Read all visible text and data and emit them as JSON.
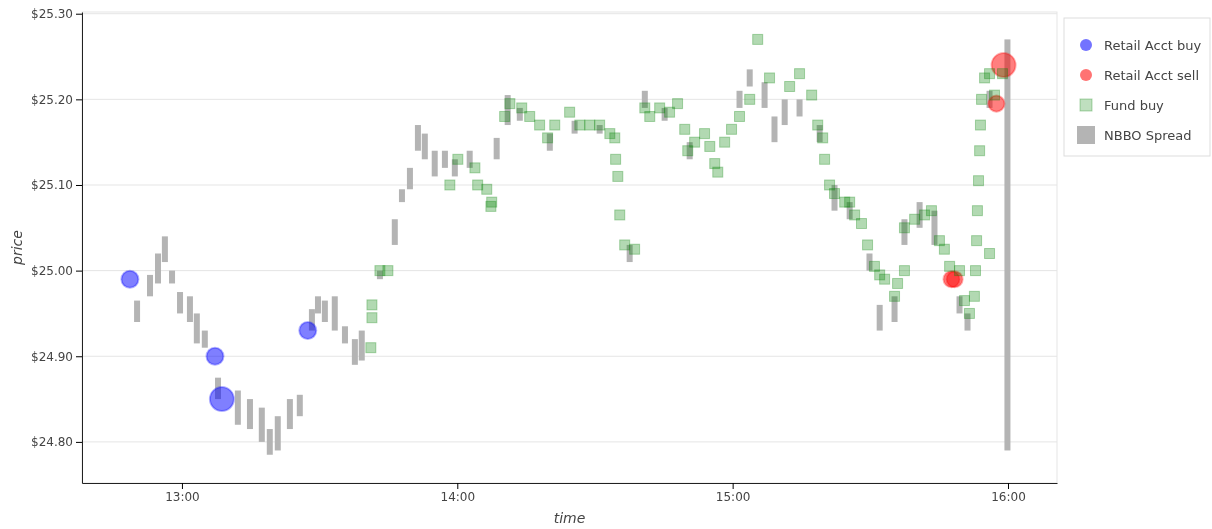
{
  "chart_data": {
    "type": "scatter",
    "xlabel": "time",
    "ylabel": "price",
    "xlim": [
      12.637,
      16.178
    ],
    "ylim": [
      24.752,
      25.302
    ],
    "xticks": [
      {
        "value": 13,
        "label": "13:00"
      },
      {
        "value": 14,
        "label": "14:00"
      },
      {
        "value": 15,
        "label": "15:00"
      },
      {
        "value": 16,
        "label": "16:00"
      }
    ],
    "yticks": [
      {
        "value": 24.8,
        "label": "$24.80"
      },
      {
        "value": 24.9,
        "label": "$24.90"
      },
      {
        "value": 25.0,
        "label": "$25.00"
      },
      {
        "value": 25.1,
        "label": "$25.10"
      },
      {
        "value": 25.2,
        "label": "$25.20"
      },
      {
        "value": 25.3,
        "label": "$25.30"
      }
    ],
    "grid": "y",
    "legend": "top right",
    "series": [
      {
        "name": "Retail Acct buy",
        "type": "bubble",
        "color": "#0000ff",
        "x": [
          12.811,
          13.12,
          13.145,
          13.457
        ],
        "values": [
          24.99,
          24.9,
          24.85,
          24.93
        ],
        "sizes": [
          0.5,
          0.5,
          1,
          0.5
        ]
      },
      {
        "name": "Retail Acct sell",
        "type": "bubble",
        "color": "#ff0000",
        "x": [
          15.795,
          15.806,
          15.958,
          15.984
        ],
        "values": [
          24.99,
          24.99,
          25.195,
          25.24
        ],
        "sizes": [
          0.45,
          0.45,
          0.45,
          1
        ]
      },
      {
        "name": "Fund buy",
        "marker": "square",
        "color": "#008000",
        "x": [
          13.686,
          13.69,
          13.69,
          13.719,
          13.748,
          13.973,
          14.002,
          14.064,
          14.074,
          14.107,
          14.122,
          14.125,
          14.172,
          14.191,
          14.234,
          14.263,
          14.299,
          14.328,
          14.354,
          14.408,
          14.445,
          14.481,
          14.517,
          14.554,
          14.572,
          14.575,
          14.583,
          14.59,
          14.608,
          14.644,
          14.681,
          14.699,
          14.735,
          14.771,
          14.8,
          14.826,
          14.837,
          14.862,
          14.898,
          14.917,
          14.935,
          14.946,
          14.971,
          14.996,
          15.025,
          15.062,
          15.091,
          15.134,
          15.207,
          15.243,
          15.287,
          15.309,
          15.327,
          15.334,
          15.352,
          15.37,
          15.407,
          15.425,
          15.443,
          15.468,
          15.49,
          15.515,
          15.534,
          15.552,
          15.588,
          15.599,
          15.624,
          15.624,
          15.661,
          15.697,
          15.722,
          15.751,
          15.769,
          15.788,
          15.824,
          15.842,
          15.86,
          15.878,
          15.882,
          15.886,
          15.889,
          15.893,
          15.897,
          15.9,
          15.904,
          15.915,
          15.933,
          15.951,
          15.98,
          15.933
        ],
        "values": [
          24.91,
          24.945,
          24.96,
          25.0,
          25.0,
          25.1,
          25.13,
          25.12,
          25.1,
          25.095,
          25.075,
          25.08,
          25.18,
          25.195,
          25.19,
          25.18,
          25.17,
          25.155,
          25.17,
          25.185,
          25.17,
          25.17,
          25.17,
          25.16,
          25.155,
          25.13,
          25.11,
          25.065,
          25.03,
          25.025,
          25.19,
          25.18,
          25.19,
          25.185,
          25.195,
          25.165,
          25.14,
          25.15,
          25.16,
          25.145,
          25.125,
          25.115,
          25.15,
          25.165,
          25.18,
          25.2,
          25.27,
          25.225,
          25.215,
          25.23,
          25.205,
          25.17,
          25.155,
          25.13,
          25.1,
          25.09,
          25.08,
          25.08,
          25.065,
          25.055,
          25.03,
          25.005,
          24.995,
          24.99,
          24.97,
          24.985,
          25.0,
          25.05,
          25.06,
          25.065,
          25.07,
          25.035,
          25.025,
          25.005,
          25.0,
          24.965,
          24.95,
          24.97,
          25.0,
          25.035,
          25.07,
          25.105,
          25.14,
          25.17,
          25.2,
          25.225,
          25.23,
          25.205,
          25.23,
          25.02
        ]
      },
      {
        "name": "NBBO Spread",
        "type": "bar",
        "color": "#b4b4b4",
        "x": [
          12.837,
          12.884,
          12.913,
          12.938,
          12.964,
          12.993,
          13.029,
          13.054,
          13.083,
          13.131,
          13.203,
          13.247,
          13.29,
          13.319,
          13.348,
          13.392,
          13.428,
          13.472,
          13.494,
          13.519,
          13.555,
          13.592,
          13.628,
          13.653,
          13.719,
          13.773,
          13.799,
          13.828,
          13.857,
          13.882,
          13.918,
          13.955,
          13.991,
          14.045,
          14.143,
          14.183,
          14.227,
          14.336,
          14.426,
          14.517,
          14.626,
          14.681,
          14.753,
          14.844,
          15.025,
          15.062,
          15.116,
          15.152,
          15.189,
          15.243,
          15.316,
          15.37,
          15.425,
          15.497,
          15.534,
          15.588,
          15.624,
          15.679,
          15.733,
          15.824,
          15.853,
          15.933,
          15.998
        ],
        "base": [
          24.94,
          24.97,
          24.985,
          25.01,
          24.985,
          24.95,
          24.94,
          24.915,
          24.91,
          24.85,
          24.82,
          24.815,
          24.8,
          24.785,
          24.79,
          24.815,
          24.83,
          24.93,
          24.95,
          24.94,
          24.93,
          24.915,
          24.89,
          24.895,
          24.99,
          25.03,
          25.08,
          25.095,
          25.14,
          25.13,
          25.11,
          25.12,
          25.11,
          25.12,
          25.13,
          25.17,
          25.175,
          25.14,
          25.16,
          25.16,
          25.01,
          25.19,
          25.175,
          25.13,
          25.19,
          25.215,
          25.19,
          25.15,
          25.17,
          25.18,
          25.15,
          25.07,
          25.06,
          25.0,
          24.93,
          24.94,
          25.03,
          25.05,
          25.03,
          24.95,
          24.93,
          25.19,
          24.79
        ],
        "values": [
          0.025,
          0.025,
          0.035,
          0.03,
          0.015,
          0.025,
          0.03,
          0.035,
          0.02,
          0.025,
          0.04,
          0.035,
          0.04,
          0.03,
          0.04,
          0.035,
          0.025,
          0.025,
          0.02,
          0.025,
          0.04,
          0.02,
          0.03,
          0.035,
          0.01,
          0.03,
          0.015,
          0.025,
          0.03,
          0.03,
          0.03,
          0.02,
          0.02,
          0.02,
          0.025,
          0.035,
          0.015,
          0.02,
          0.015,
          0.01,
          0.02,
          0.02,
          0.015,
          0.02,
          0.02,
          0.02,
          0.03,
          0.03,
          0.03,
          0.02,
          0.02,
          0.03,
          0.02,
          0.02,
          0.03,
          0.03,
          0.03,
          0.03,
          0.04,
          0.02,
          0.02,
          0.02,
          0.48
        ]
      }
    ]
  }
}
